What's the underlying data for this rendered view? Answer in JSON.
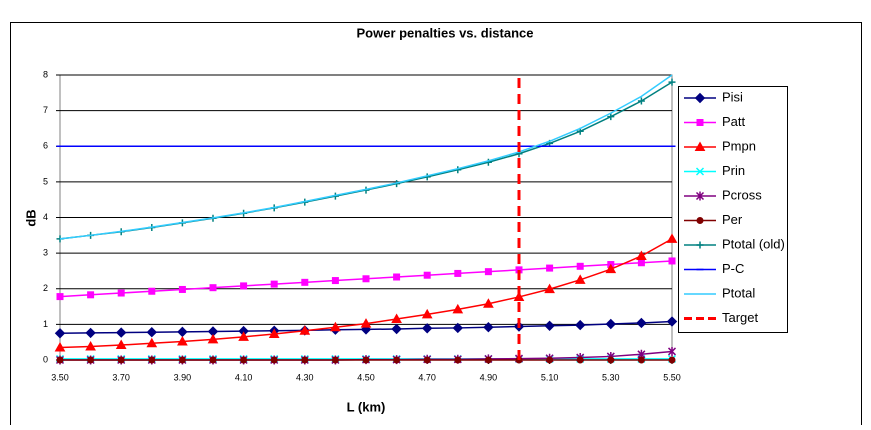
{
  "chart_data": {
    "type": "line",
    "title": "Power penalties vs. distance",
    "x_label": "L (km)",
    "y_label": "dB",
    "x": [
      3.5,
      3.6,
      3.7,
      3.8,
      3.9,
      4.0,
      4.1,
      4.2,
      4.3,
      4.4,
      4.5,
      4.6,
      4.7,
      4.8,
      4.9,
      5.0,
      5.1,
      5.2,
      5.3,
      5.4,
      5.5
    ],
    "xlim": [
      3.5,
      5.5
    ],
    "xticks": [
      {
        "value": 3.5,
        "label": "3.50"
      },
      {
        "value": 3.7,
        "label": "3.70"
      },
      {
        "value": 3.9,
        "label": "3.90"
      },
      {
        "value": 4.1,
        "label": "4.10"
      },
      {
        "value": 4.3,
        "label": "4.30"
      },
      {
        "value": 4.5,
        "label": "4.50"
      },
      {
        "value": 4.7,
        "label": "4.70"
      },
      {
        "value": 4.9,
        "label": "4.90"
      },
      {
        "value": 5.1,
        "label": "5.10"
      },
      {
        "value": 5.3,
        "label": "5.30"
      },
      {
        "value": 5.5,
        "label": "5.50"
      }
    ],
    "ylim": [
      0,
      8
    ],
    "yticks": [
      0,
      1,
      2,
      3,
      4,
      5,
      6,
      7,
      8
    ],
    "grid": true,
    "series": [
      {
        "name": "Pisi",
        "color": "#000080",
        "marker": "diamond",
        "values": [
          0.75,
          0.76,
          0.77,
          0.78,
          0.79,
          0.8,
          0.81,
          0.82,
          0.83,
          0.85,
          0.86,
          0.87,
          0.89,
          0.9,
          0.92,
          0.94,
          0.96,
          0.98,
          1.01,
          1.04,
          1.08
        ]
      },
      {
        "name": "Patt",
        "color": "#ff00ff",
        "marker": "square",
        "values": [
          1.78,
          1.83,
          1.88,
          1.93,
          1.98,
          2.03,
          2.08,
          2.13,
          2.18,
          2.23,
          2.28,
          2.33,
          2.38,
          2.43,
          2.48,
          2.53,
          2.58,
          2.63,
          2.68,
          2.73,
          2.78
        ]
      },
      {
        "name": "Pmpn",
        "color": "#ff0000",
        "marker": "triangle",
        "values": [
          0.35,
          0.38,
          0.42,
          0.47,
          0.52,
          0.58,
          0.65,
          0.73,
          0.82,
          0.92,
          1.02,
          1.15,
          1.28,
          1.42,
          1.58,
          1.77,
          1.99,
          2.25,
          2.55,
          2.92,
          3.4
        ]
      },
      {
        "name": "Prin",
        "color": "#00ffff",
        "marker": "x",
        "values": [
          0.03,
          0.03,
          0.03,
          0.03,
          0.03,
          0.03,
          0.03,
          0.03,
          0.03,
          0.03,
          0.03,
          0.03,
          0.03,
          0.03,
          0.03,
          0.03,
          0.03,
          0.03,
          0.03,
          0.03,
          0.03
        ]
      },
      {
        "name": "Pcross",
        "color": "#800080",
        "marker": "star",
        "values": [
          0,
          0,
          0,
          0,
          0,
          0,
          0,
          0,
          0,
          0,
          0.01,
          0.01,
          0.02,
          0.02,
          0.03,
          0.04,
          0.05,
          0.07,
          0.1,
          0.16,
          0.24
        ]
      },
      {
        "name": "Per",
        "color": "#800000",
        "marker": "circle",
        "values": [
          0,
          0,
          0,
          0,
          0,
          0,
          0,
          0,
          0,
          0,
          0,
          0,
          0,
          0,
          0,
          0,
          0,
          0,
          0,
          0,
          0
        ]
      },
      {
        "name": "Ptotal (old)",
        "color": "#008080",
        "marker": "plus",
        "values": [
          3.4,
          3.5,
          3.6,
          3.72,
          3.85,
          3.98,
          4.12,
          4.27,
          4.43,
          4.6,
          4.77,
          4.95,
          5.14,
          5.34,
          5.55,
          5.79,
          6.08,
          6.42,
          6.83,
          7.27,
          7.8
        ]
      },
      {
        "name": "P-C",
        "color": "#0000ff",
        "marker": "dash",
        "values": [
          6,
          6,
          6,
          6,
          6,
          6,
          6,
          6,
          6,
          6,
          6,
          6,
          6,
          6,
          6,
          6,
          6,
          6,
          6,
          6,
          6
        ]
      },
      {
        "name": "Ptotal",
        "color": "#33ccff",
        "marker": "none",
        "values": [
          3.4,
          3.5,
          3.61,
          3.73,
          3.86,
          3.99,
          4.13,
          4.28,
          4.45,
          4.62,
          4.79,
          4.97,
          5.17,
          5.37,
          5.59,
          5.84,
          6.14,
          6.5,
          6.93,
          7.4,
          8.0
        ]
      },
      {
        "name": "Target",
        "color": "#ff0000",
        "marker": "none",
        "dashed": true,
        "x": [
          5.0,
          5.0
        ],
        "values": [
          0,
          8
        ]
      }
    ]
  }
}
